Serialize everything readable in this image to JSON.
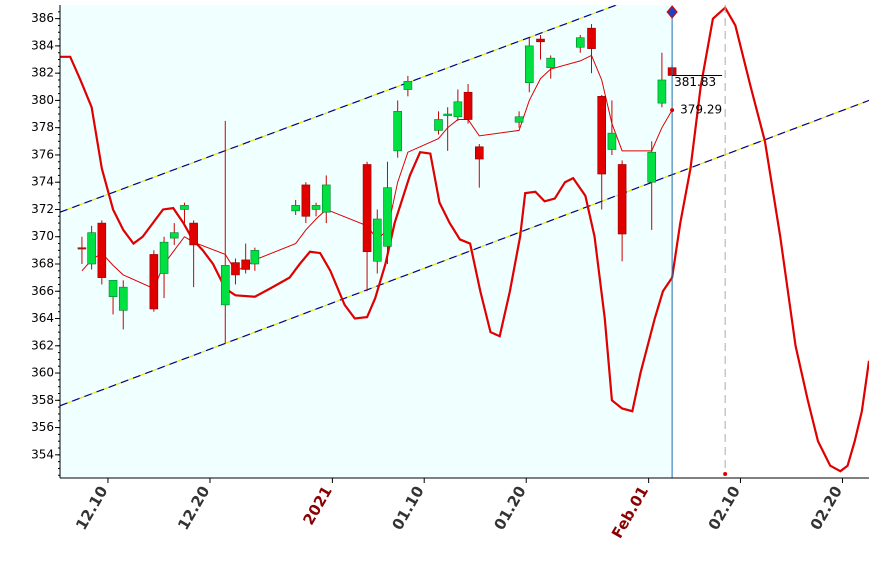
{
  "chart_data": {
    "type": "candlestick",
    "xlim": [
      5.3,
      84.6
    ],
    "ylim": [
      352.3,
      387
    ],
    "yticks": [
      354,
      356,
      358,
      360,
      362,
      364,
      366,
      368,
      370,
      372,
      374,
      376,
      378,
      380,
      382,
      384,
      386
    ],
    "xticks": [
      {
        "value": 10,
        "label": "12.10"
      },
      {
        "value": 20,
        "label": "12.20"
      },
      {
        "value": 32,
        "label": "2021"
      },
      {
        "value": 41,
        "label": "01.10"
      },
      {
        "value": 51,
        "label": "01.20"
      },
      {
        "value": 63,
        "label": "Feb.01"
      },
      {
        "value": 72,
        "label": "02.10"
      },
      {
        "value": 82,
        "label": "02.20"
      }
    ],
    "emphasized_xticks": [
      2,
      5
    ],
    "emphasis_color": "#8b0000",
    "up_color": "#00e040",
    "down_color": "#e00000",
    "wick_color": "#cc0000",
    "background": "#f0ffff",
    "x": [
      7.45,
      8.4,
      9.4,
      10.5,
      11.5,
      14.5,
      15.5,
      16.5,
      17.5,
      18.4,
      21.5,
      22.5,
      23.5,
      24.4,
      28.4,
      29.4,
      30.4,
      31.4,
      35.4,
      36.4,
      37.4,
      38.4,
      39.4,
      42.4,
      43.3,
      44.3,
      45.3,
      46.4,
      50.3,
      51.3,
      52.4,
      53.4,
      56.3,
      57.4,
      58.4,
      59.4,
      60.4,
      63.3,
      64.3,
      65.3
    ],
    "open": [
      369.2,
      368,
      371,
      365.6,
      364.6,
      368.7,
      367.3,
      369.9,
      372,
      371,
      365,
      368.1,
      368.3,
      368,
      371.9,
      373.8,
      372,
      371.8,
      375.3,
      368.2,
      369.3,
      376.3,
      380.8,
      377.8,
      378.9,
      378.8,
      380.6,
      376.6,
      378.4,
      381.3,
      384.5,
      382.4,
      383.9,
      385.3,
      380.3,
      376.4,
      375.3,
      374,
      379.8,
      382.4
    ],
    "high": [
      370,
      370.8,
      371.2,
      366.8,
      366.8,
      369,
      370,
      371,
      372.5,
      371.2,
      378.5,
      368.4,
      369.5,
      369.2,
      372.7,
      374,
      372.5,
      374.5,
      375.5,
      372,
      375.5,
      380,
      381.8,
      379.2,
      379.5,
      380.8,
      381.2,
      376.8,
      379.2,
      384.6,
      384.8,
      383.3,
      384.8,
      385.6,
      380.4,
      380,
      375.6,
      377,
      383.5,
      382.6
    ],
    "low": [
      368,
      367.6,
      366.5,
      364.3,
      363.2,
      364.5,
      365.5,
      369.4,
      371,
      366.3,
      362.2,
      366.5,
      367.3,
      367.5,
      371.6,
      371,
      371.5,
      371,
      366,
      367.3,
      368,
      375.8,
      380.3,
      377.5,
      376.3,
      378.5,
      378.3,
      373.6,
      378,
      380.6,
      383,
      381.6,
      383.5,
      382,
      372,
      376,
      368.2,
      370.5,
      379.5,
      381.8
    ],
    "close": [
      369.2,
      370.3,
      367,
      366.8,
      366.3,
      364.7,
      369.6,
      370.3,
      372.3,
      369.4,
      367.9,
      367.2,
      367.6,
      369,
      372.3,
      371.5,
      372.3,
      373.8,
      368.9,
      371.3,
      373.6,
      379.2,
      381.4,
      378.6,
      379,
      379.9,
      378.6,
      375.7,
      378.8,
      384,
      384.3,
      383.1,
      384.6,
      383.8,
      374.6,
      377.6,
      370.2,
      376.2,
      381.5,
      381.83
    ],
    "ma": {
      "color": "#e00000",
      "x": [
        7.45,
        8.4,
        9.4,
        10.5,
        11.5,
        14.5,
        15.5,
        16.5,
        17.5,
        18.4,
        21.5,
        22.5,
        23.5,
        24.4,
        28.4,
        29.4,
        30.4,
        31.4,
        35.4,
        36.4,
        37.4,
        38.4,
        39.4,
        42.4,
        43.3,
        44.3,
        45.3,
        46.4,
        50.3,
        51.3,
        52.4,
        53.4,
        56.3,
        57.4,
        58.4,
        59.4,
        60.4,
        63.3,
        64.3,
        65.3
      ],
      "values": [
        367.5,
        368.3,
        368.8,
        367.9,
        367.2,
        366.2,
        368,
        369,
        370,
        369.6,
        368.7,
        367.5,
        367.8,
        368.3,
        369.5,
        370.5,
        371.3,
        372,
        370.8,
        369.8,
        370.5,
        374,
        376.2,
        377.2,
        378,
        378.6,
        378.6,
        377.4,
        377.8,
        380,
        381.6,
        382.3,
        382.9,
        383.3,
        381.5,
        378.3,
        376.3,
        376.3,
        378,
        379.29
      ]
    },
    "oscillator": {
      "color": "#e00000",
      "x": [
        5.3,
        6.3,
        7.3,
        8.4,
        9.4,
        10.5,
        11.5,
        12.5,
        13.4,
        14.4,
        15.4,
        16.4,
        17.4,
        18.3,
        19.3,
        20.3,
        21.5,
        22.5,
        24.4,
        25.9,
        27.8,
        28.8,
        29.8,
        30.8,
        31.8,
        33.2,
        34.2,
        35.4,
        36.2,
        37.2,
        38.1,
        39.6,
        40.6,
        41.6,
        42.5,
        43.5,
        44.5,
        45.5,
        46.5,
        47.5,
        48.4,
        49.4,
        50.4,
        50.9,
        51.9,
        52.8,
        53.8,
        54.8,
        55.6,
        56.8,
        57.7,
        58.7,
        59.4,
        60.4,
        61.4,
        62.2,
        63.6,
        64.4,
        65.3,
        66.1,
        67.1,
        68.1,
        69.3,
        70.5,
        71.5,
        73,
        74.4,
        75.9,
        77.4,
        78.6,
        79.6,
        80.8,
        81.8,
        82.5,
        83.2,
        83.9,
        84.6
      ],
      "values": [
        383.2,
        383.2,
        381.5,
        379.5,
        375,
        372,
        370.5,
        369.5,
        370,
        371,
        372,
        372.1,
        371,
        369.8,
        369,
        368,
        366.2,
        365.7,
        365.6,
        366.2,
        367,
        368,
        368.9,
        368.8,
        367.5,
        365,
        364,
        364.1,
        365.5,
        368,
        371,
        374.5,
        376.2,
        376.1,
        372.5,
        371,
        369.8,
        369.5,
        366,
        363,
        362.7,
        366,
        370,
        373.2,
        373.3,
        372.6,
        372.8,
        374,
        374.3,
        373,
        370,
        364,
        358,
        357.4,
        357.2,
        360,
        364,
        366,
        367,
        371,
        375,
        381,
        386,
        386.8,
        385.5,
        381,
        377,
        370,
        362,
        358,
        355,
        353.2,
        352.8,
        353.2,
        355,
        357.2,
        360.9
      ]
    },
    "channels": [
      {
        "color": "#000080",
        "x": [
          5.3,
          84.6
        ],
        "values": [
          371.8,
          393.9
        ]
      },
      {
        "color": "#000080",
        "x": [
          5.3,
          84.6
        ],
        "values": [
          357.6,
          380
        ]
      }
    ],
    "cursor_x": 65.3,
    "cursor_color": "#1a6fb0",
    "projection_x": 70.5
  }
}
